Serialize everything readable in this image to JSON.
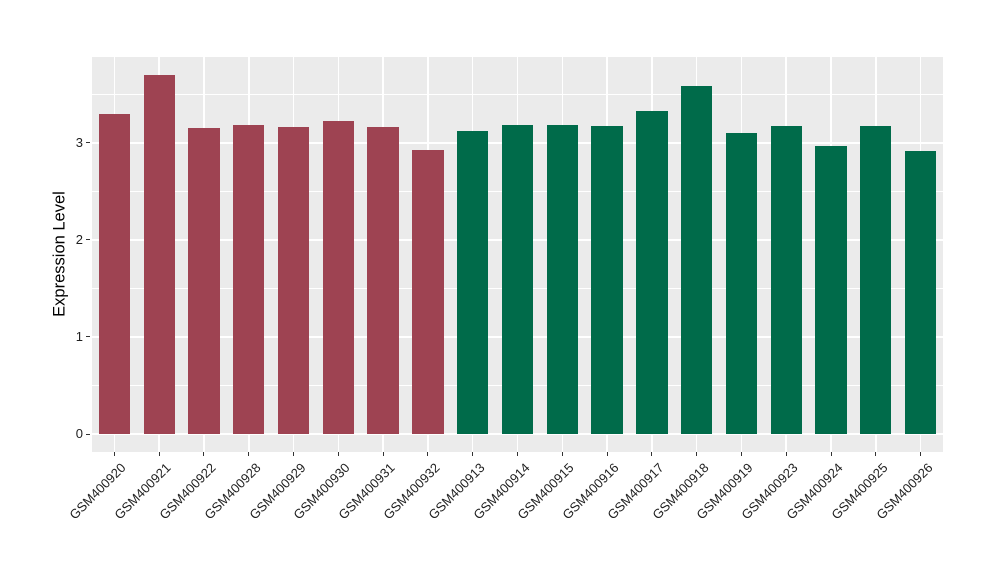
{
  "chart_data": {
    "type": "bar",
    "title": "",
    "xlabel": "",
    "ylabel": "Expression Level",
    "categories": [
      "GSM400920",
      "GSM400921",
      "GSM400922",
      "GSM400928",
      "GSM400929",
      "GSM400930",
      "GSM400931",
      "GSM400932",
      "GSM400913",
      "GSM400914",
      "GSM400915",
      "GSM400916",
      "GSM400917",
      "GSM400918",
      "GSM400919",
      "GSM400923",
      "GSM400924",
      "GSM400925",
      "GSM400926"
    ],
    "values": [
      3.3,
      3.7,
      3.15,
      3.18,
      3.16,
      3.23,
      3.16,
      2.93,
      3.12,
      3.18,
      3.18,
      3.17,
      3.33,
      3.59,
      3.1,
      3.17,
      2.97,
      3.17,
      2.92
    ],
    "bar_groups": [
      "red",
      "red",
      "red",
      "red",
      "red",
      "red",
      "red",
      "red",
      "green",
      "green",
      "green",
      "green",
      "green",
      "green",
      "green",
      "green",
      "green",
      "green",
      "green"
    ],
    "group_colors": {
      "red": "#9E4352",
      "green": "#006B4A"
    },
    "yticks": [
      0,
      1,
      2,
      3
    ],
    "yticks_minor": [
      0.5,
      1.5,
      2.5,
      3.5
    ],
    "ylim": [
      -0.185,
      3.885
    ],
    "y_expansion": 0.05,
    "x_tick_rotation_deg": 45,
    "legend_position": "none",
    "grid": true,
    "style": {
      "background": "#FFFFFF",
      "panel_bg": "#EBEBEB",
      "grid_color": "#FFFFFF",
      "axis_text_color": "#1F1F1F",
      "axis_title_color": "#000000",
      "tick_mark_color": "#333333"
    }
  }
}
